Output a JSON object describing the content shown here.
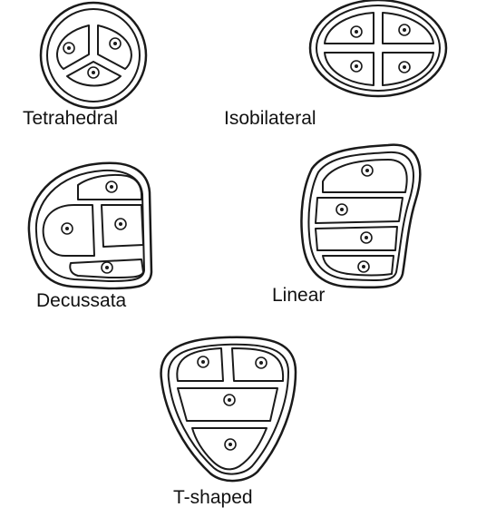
{
  "labels": {
    "tetrahedral": "Tetrahedral",
    "isobilateral": "Isobilateral",
    "decussata": "Decussata",
    "linear": "Linear",
    "t_shaped": "T-shaped"
  },
  "colors": {
    "line": "#1a1a1a",
    "background": "#ffffff"
  }
}
